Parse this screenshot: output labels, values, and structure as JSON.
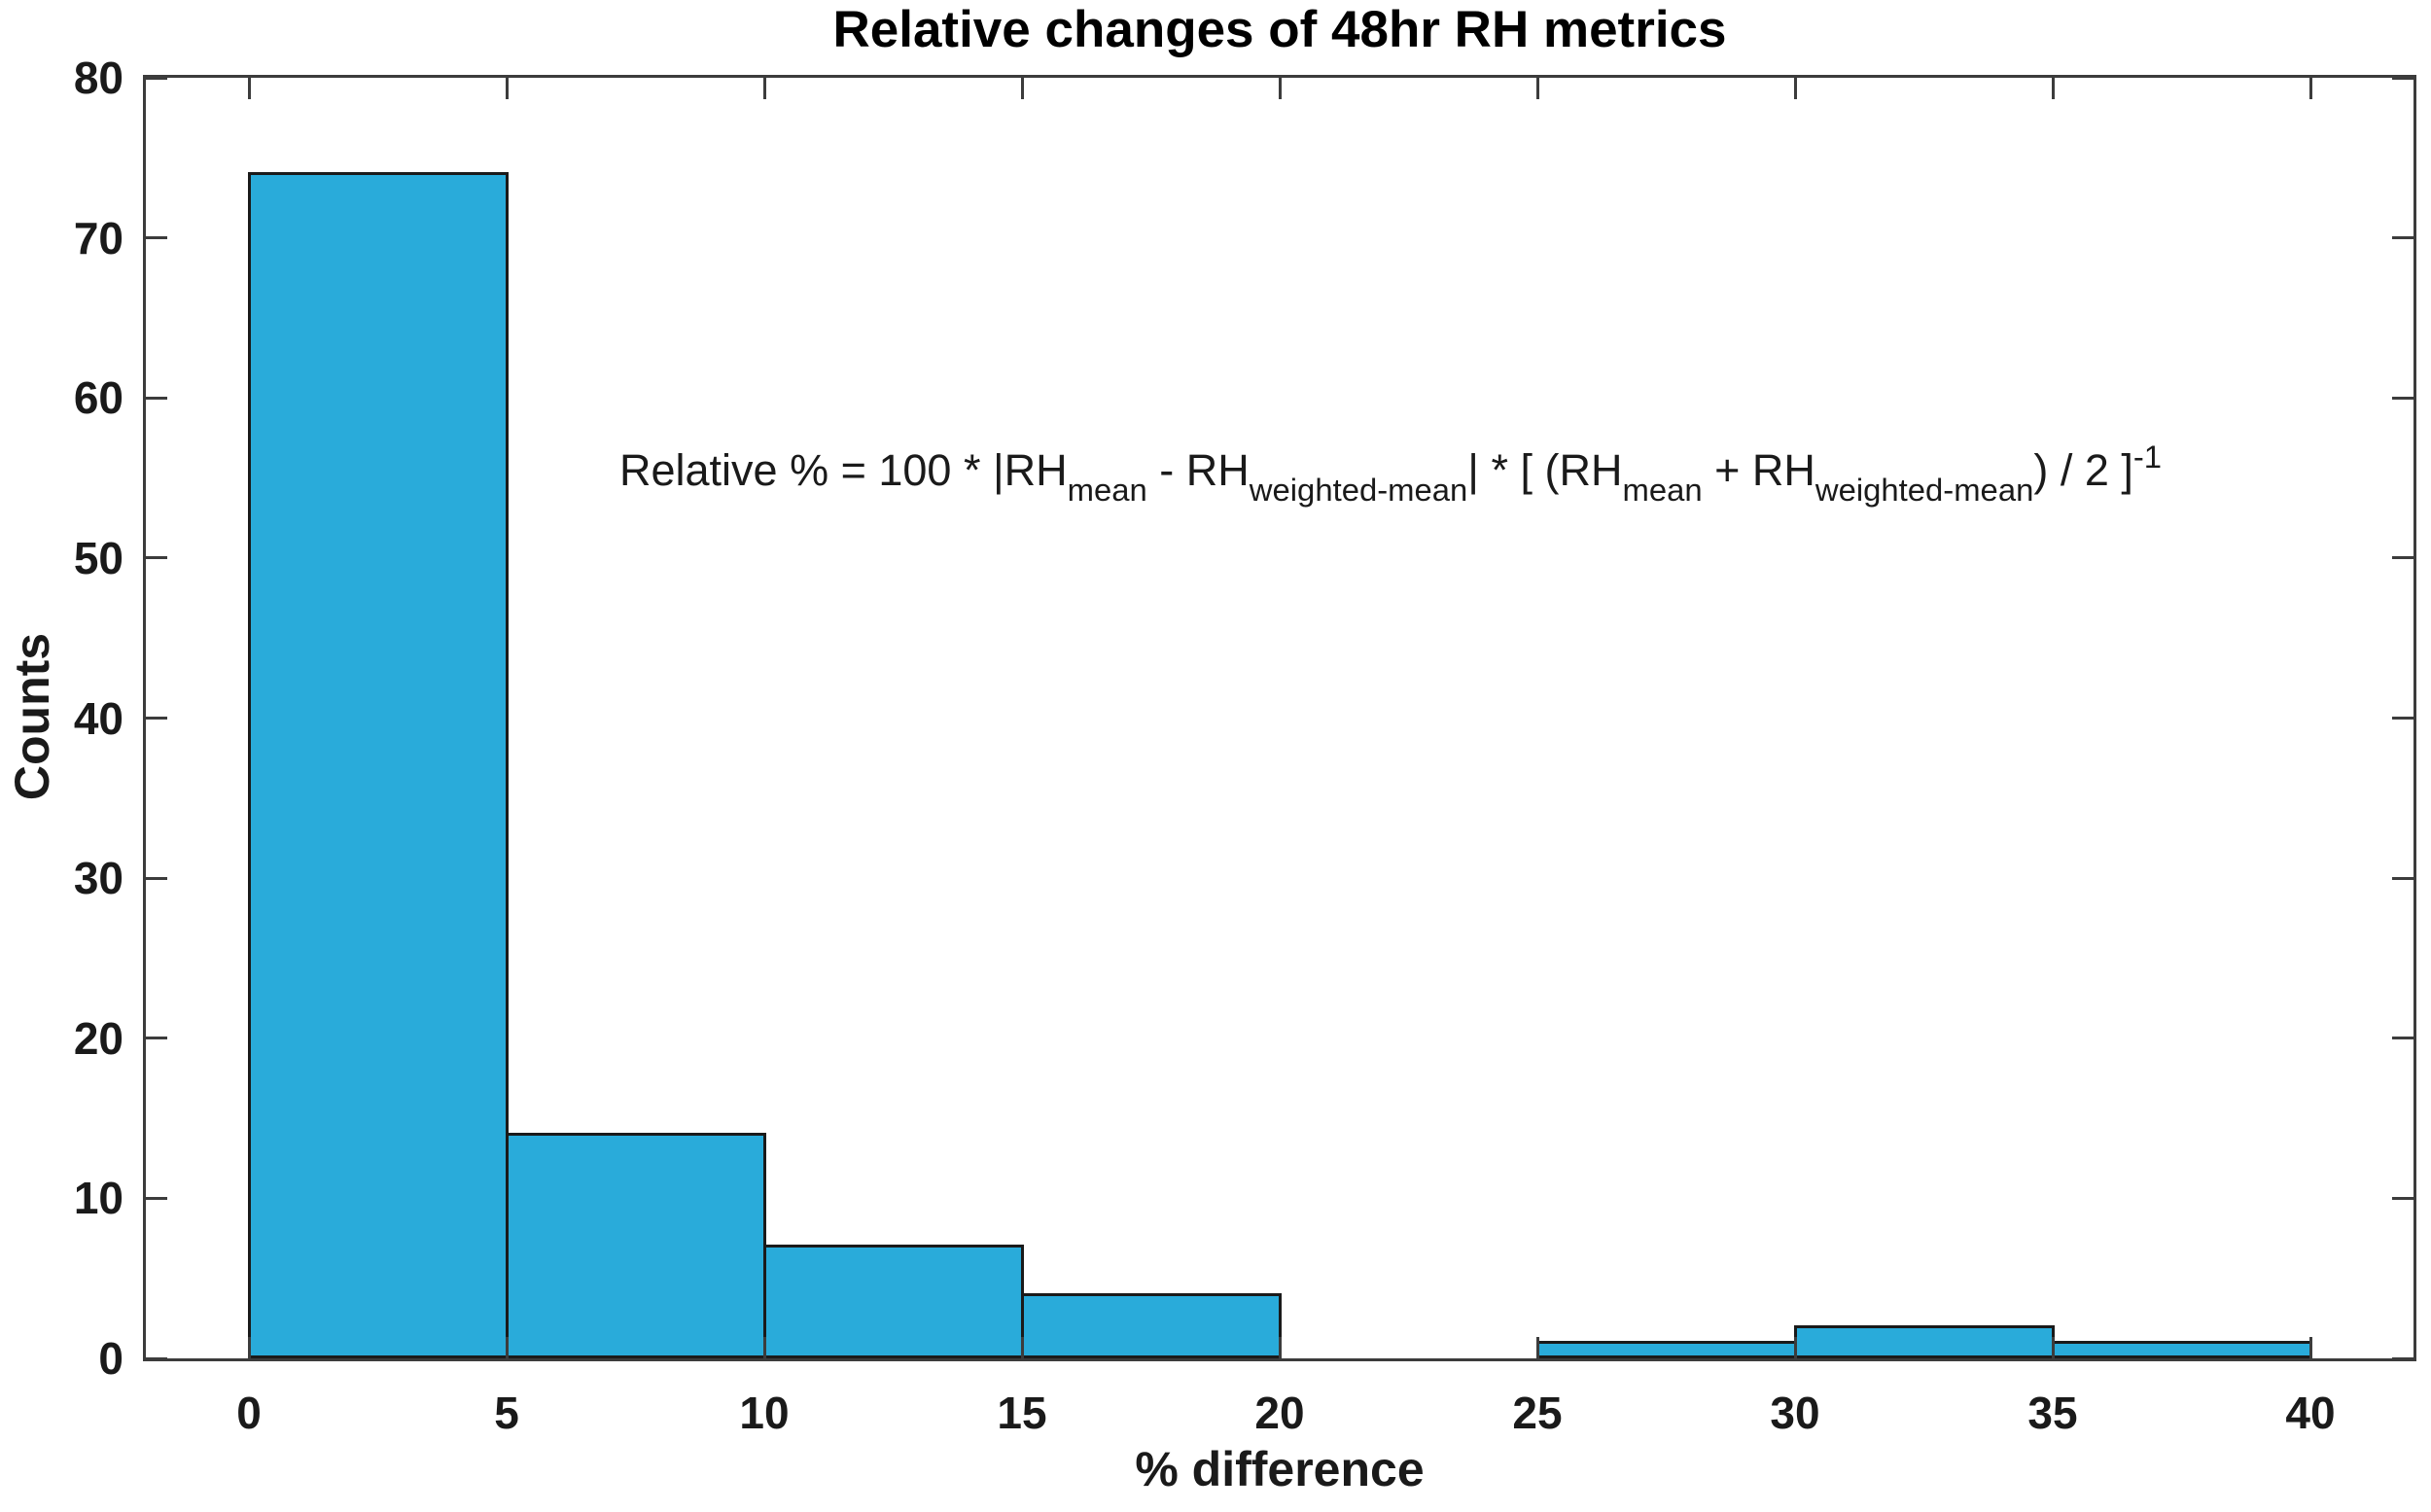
{
  "title": "Relative changes of 48hr RH metrics",
  "annotation": {
    "segments": [
      {
        "text": "Relative % = 100 * |RH",
        "style": "normal"
      },
      {
        "text": "mean",
        "style": "sub"
      },
      {
        "text": " - RH",
        "style": "normal"
      },
      {
        "text": "weighted-mean",
        "style": "sub"
      },
      {
        "text": "| * [ (RH",
        "style": "normal"
      },
      {
        "text": "mean",
        "style": "sub"
      },
      {
        "text": " + RH",
        "style": "normal"
      },
      {
        "text": "weighted-mean",
        "style": "sub"
      },
      {
        "text": ") / 2 ]",
        "style": "normal"
      },
      {
        "text": "-1",
        "style": "sup"
      }
    ]
  },
  "chart_data": {
    "type": "bar",
    "subtype": "histogram",
    "title": "Relative changes of 48hr RH metrics",
    "xlabel": "% difference",
    "ylabel": "Counts",
    "bin_edges": [
      0,
      5,
      10,
      15,
      20,
      25,
      30,
      35,
      40
    ],
    "counts": [
      74,
      14,
      7,
      4,
      0,
      1,
      2,
      1
    ],
    "x_ticks": [
      0,
      5,
      10,
      15,
      20,
      25,
      30,
      35,
      40
    ],
    "y_ticks": [
      0,
      10,
      20,
      30,
      40,
      50,
      60,
      70,
      80
    ],
    "xlim": [
      -2,
      42
    ],
    "ylim": [
      0,
      80
    ],
    "grid": false,
    "legend": "none",
    "tick_direction": "in",
    "box": true,
    "bar_color": "#29ABDA",
    "bar_edge_color": "#1A1A1A",
    "axis_color": "#3C3C3C",
    "text_color": "#1A1A1A"
  }
}
